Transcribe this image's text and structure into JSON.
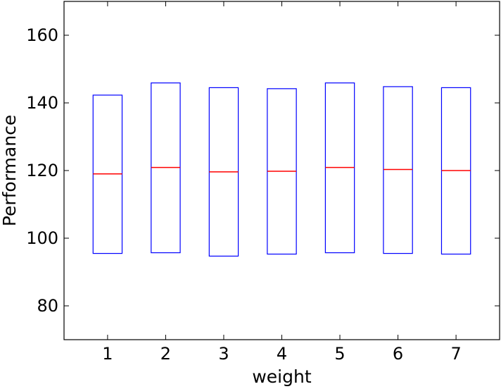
{
  "chart_data": {
    "type": "box",
    "title": "",
    "xlabel": "weight",
    "ylabel": "Performance",
    "categories": [
      "1",
      "2",
      "3",
      "4",
      "5",
      "6",
      "7"
    ],
    "boxes": [
      {
        "category": "1",
        "q1": 95.5,
        "median": 119.0,
        "q3": 142.3
      },
      {
        "category": "2",
        "q1": 95.7,
        "median": 120.9,
        "q3": 145.9
      },
      {
        "category": "3",
        "q1": 94.7,
        "median": 119.6,
        "q3": 144.5
      },
      {
        "category": "4",
        "q1": 95.3,
        "median": 119.8,
        "q3": 144.2
      },
      {
        "category": "5",
        "q1": 95.7,
        "median": 120.9,
        "q3": 145.9
      },
      {
        "category": "6",
        "q1": 95.5,
        "median": 120.3,
        "q3": 144.8
      },
      {
        "category": "7",
        "q1": 95.3,
        "median": 120.0,
        "q3": 144.5
      }
    ],
    "ylim": [
      70,
      170
    ],
    "yticks": [
      80,
      100,
      120,
      140,
      160
    ],
    "grid": false,
    "colors": {
      "box": "#0000ff",
      "median": "#ff0000",
      "axes": "#000000"
    }
  }
}
